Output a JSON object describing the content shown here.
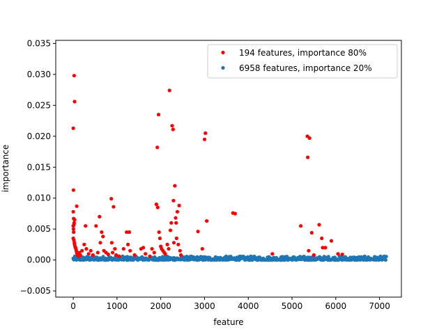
{
  "chart_data": {
    "type": "scatter",
    "title": "",
    "xlabel": "feature",
    "ylabel": "importance",
    "xlim": [
      -400,
      7500
    ],
    "ylim": [
      -0.006,
      0.0355
    ],
    "xticks": [
      0,
      1000,
      2000,
      3000,
      4000,
      5000,
      6000,
      7000
    ],
    "xtick_labels": [
      "0",
      "1000",
      "2000",
      "3000",
      "4000",
      "5000",
      "6000",
      "7000"
    ],
    "yticks": [
      -0.005,
      0.0,
      0.005,
      0.01,
      0.015,
      0.02,
      0.025,
      0.03,
      0.035
    ],
    "ytick_labels": [
      "−0.005",
      "0.000",
      "0.005",
      "0.010",
      "0.015",
      "0.020",
      "0.025",
      "0.030",
      "0.035"
    ],
    "grid": false,
    "legend": {
      "placement": "top-right",
      "entries": [
        "194 features, importance 80%",
        "6958 features, importance 20%"
      ]
    },
    "series": [
      {
        "name": "194 features, importance 80%",
        "color": "#ff0000",
        "points": [
          [
            20,
            0.0298
          ],
          [
            30,
            0.0256
          ],
          [
            0,
            0.0213
          ],
          [
            5,
            0.0113
          ],
          [
            80,
            0.0087
          ],
          [
            0,
            0.0078
          ],
          [
            10,
            0.0067
          ],
          [
            30,
            0.0065
          ],
          [
            20,
            0.006
          ],
          [
            15,
            0.0057
          ],
          [
            0,
            0.0055
          ],
          [
            5,
            0.005
          ],
          [
            10,
            0.0045
          ],
          [
            0,
            0.0035
          ],
          [
            15,
            0.0032
          ],
          [
            25,
            0.0028
          ],
          [
            30,
            0.0025
          ],
          [
            40,
            0.0022
          ],
          [
            50,
            0.002
          ],
          [
            60,
            0.0018
          ],
          [
            70,
            0.0015
          ],
          [
            80,
            0.0012
          ],
          [
            90,
            0.001
          ],
          [
            100,
            0.0008
          ],
          [
            120,
            0.0006
          ],
          [
            140,
            0.0012
          ],
          [
            160,
            0.0008
          ],
          [
            200,
            0.0015
          ],
          [
            250,
            0.0025
          ],
          [
            280,
            0.0055
          ],
          [
            300,
            0.0018
          ],
          [
            350,
            0.001
          ],
          [
            400,
            0.0015
          ],
          [
            450,
            0.0008
          ],
          [
            520,
            0.0055
          ],
          [
            560,
            0.0012
          ],
          [
            600,
            0.007
          ],
          [
            620,
            0.0028
          ],
          [
            650,
            0.0045
          ],
          [
            680,
            0.0038
          ],
          [
            700,
            0.0015
          ],
          [
            750,
            0.0012
          ],
          [
            800,
            0.0009
          ],
          [
            870,
            0.0099
          ],
          [
            880,
            0.0028
          ],
          [
            900,
            0.0012
          ],
          [
            920,
            0.0086
          ],
          [
            950,
            0.0018
          ],
          [
            980,
            0.0008
          ],
          [
            1050,
            0.0006
          ],
          [
            1150,
            0.0018
          ],
          [
            1220,
            0.0045
          ],
          [
            1250,
            0.0025
          ],
          [
            1280,
            0.0045
          ],
          [
            1300,
            0.0015
          ],
          [
            1400,
            0.0008
          ],
          [
            1550,
            0.0018
          ],
          [
            1600,
            0.002
          ],
          [
            1650,
            0.001
          ],
          [
            1750,
            0.0006
          ],
          [
            1800,
            0.0018
          ],
          [
            1850,
            0.0012
          ],
          [
            1900,
            0.009
          ],
          [
            1920,
            0.0182
          ],
          [
            1930,
            0.0085
          ],
          [
            1950,
            0.0235
          ],
          [
            1960,
            0.0045
          ],
          [
            1980,
            0.0035
          ],
          [
            2000,
            0.0022
          ],
          [
            2020,
            0.0018
          ],
          [
            2050,
            0.0015
          ],
          [
            2080,
            0.0012
          ],
          [
            2100,
            0.001
          ],
          [
            2150,
            0.0025
          ],
          [
            2180,
            0.0018
          ],
          [
            2200,
            0.0274
          ],
          [
            2220,
            0.0048
          ],
          [
            2240,
            0.006
          ],
          [
            2260,
            0.0217
          ],
          [
            2280,
            0.0211
          ],
          [
            2290,
            0.0096
          ],
          [
            2300,
            0.0028
          ],
          [
            2320,
            0.012
          ],
          [
            2340,
            0.0068
          ],
          [
            2350,
            0.006
          ],
          [
            2360,
            0.0035
          ],
          [
            2380,
            0.0078
          ],
          [
            2400,
            0.0025
          ],
          [
            2420,
            0.0088
          ],
          [
            2440,
            0.0015
          ],
          [
            2460,
            0.0008
          ],
          [
            2850,
            0.0046
          ],
          [
            2950,
            0.0018
          ],
          [
            3000,
            0.0195
          ],
          [
            3020,
            0.0205
          ],
          [
            3050,
            0.0063
          ],
          [
            3650,
            0.0076
          ],
          [
            3700,
            0.0075
          ],
          [
            4550,
            0.001
          ],
          [
            5200,
            0.0055
          ],
          [
            5350,
            0.02
          ],
          [
            5360,
            0.0166
          ],
          [
            5380,
            0.0015
          ],
          [
            5400,
            0.0197
          ],
          [
            5450,
            0.0044
          ],
          [
            5500,
            0.0008
          ],
          [
            5620,
            0.0057
          ],
          [
            5680,
            0.0035
          ],
          [
            5700,
            0.002
          ],
          [
            5760,
            0.002
          ],
          [
            5900,
            0.0031
          ],
          [
            6050,
            0.001
          ],
          [
            6150,
            0.0009
          ]
        ]
      },
      {
        "name": "6958 features, importance 20%",
        "color": "#1f77b4",
        "xmin": 0,
        "xmax": 7152,
        "typical_range": [
          0.0,
          0.0006
        ]
      }
    ]
  }
}
